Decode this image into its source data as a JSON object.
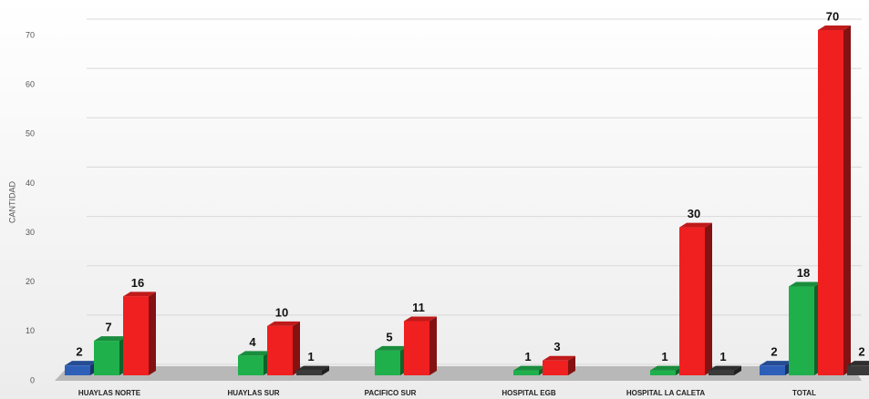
{
  "chart_data": {
    "type": "bar3d",
    "y_label": "CANTIDAD",
    "categories": [
      "HUAYLAS NORTE",
      "HUAYLAS SUR",
      "PACIFICO SUR",
      "HOSPITAL EGB",
      "HOSPITAL LA CALETA",
      "TOTAL"
    ],
    "series": [
      {
        "color": "#2e5fb8",
        "values": [
          2,
          null,
          null,
          null,
          null,
          2
        ]
      },
      {
        "color": "#1fb04c",
        "values": [
          7,
          4,
          5,
          1,
          1,
          18
        ]
      },
      {
        "color": "#f02020",
        "values": [
          16,
          10,
          11,
          3,
          30,
          70
        ]
      },
      {
        "color": "#3a3a3a",
        "values": [
          null,
          1,
          null,
          null,
          1,
          2
        ]
      }
    ],
    "ylim": [
      0,
      70
    ],
    "yticks": [
      0,
      10,
      20,
      30,
      40,
      50,
      60,
      70
    ],
    "grid": true
  }
}
